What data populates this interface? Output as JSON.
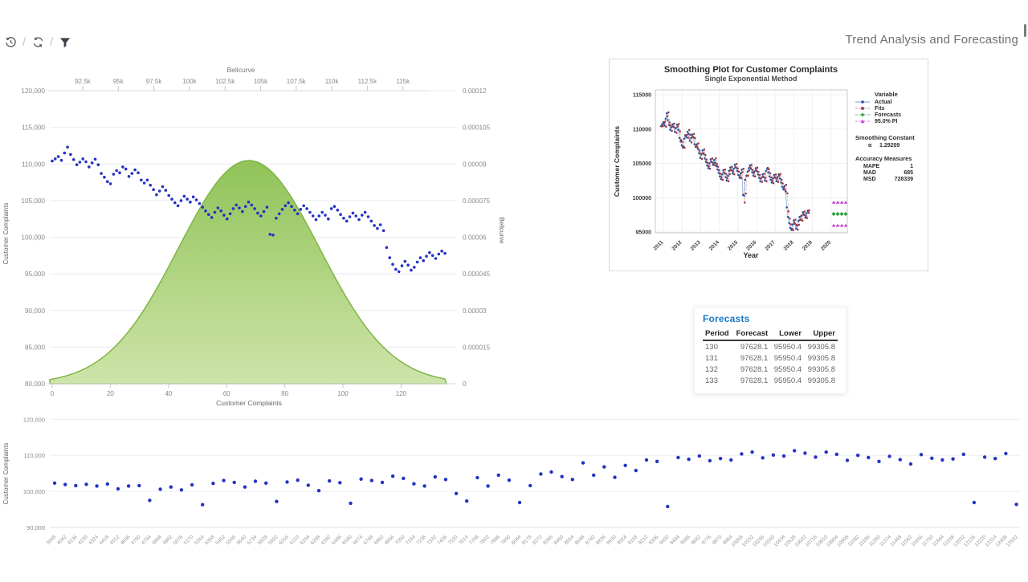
{
  "header": {
    "title": "Trend Analysis and Forecasting",
    "toolbar_icons": [
      "undo-icon",
      "refresh-icon",
      "filter-icon"
    ]
  },
  "forecasts_card": {
    "title": "Forecasts",
    "columns": [
      "Period",
      "Forecast",
      "Lower",
      "Upper"
    ],
    "rows": [
      [
        "130",
        "97628.1",
        "95950.4",
        "99305.8"
      ],
      [
        "131",
        "97628.1",
        "95950.4",
        "99305.8"
      ],
      [
        "132",
        "97628.1",
        "95950.4",
        "99305.8"
      ],
      [
        "133",
        "97628.1",
        "95950.4",
        "99305.8"
      ]
    ]
  },
  "chart_data": [
    {
      "type": "scatter",
      "name": "bellcurve-overlay-chart",
      "x_bottom": {
        "label": "Customer Complaints",
        "tick_values": [
          0,
          20,
          40,
          60,
          80,
          100,
          120
        ]
      },
      "x_top": {
        "label": "Bellcurve",
        "tick_values": [
          92500,
          95000,
          97500,
          100000,
          102500,
          105000,
          107500,
          110000,
          112500,
          115000
        ],
        "tick_labels": [
          "92.5k",
          "95k",
          "97.5k",
          "100k",
          "102.5k",
          "105k",
          "107.5k",
          "110k",
          "112.5k",
          "115k"
        ]
      },
      "y_left": {
        "label": "Customer Complaints",
        "tick_values": [
          120000,
          115000,
          110000,
          105000,
          100000,
          95000,
          90000,
          85000,
          80000
        ],
        "tick_labels": [
          "120,000",
          "115,000",
          "110,000",
          "105,000",
          "100,000",
          "95,000",
          "90,000",
          "85,000",
          "80,000"
        ]
      },
      "y_right": {
        "label": "Bellcurve",
        "tick_labels": [
          "0.00012",
          "0.000105",
          "0.00009",
          "0.000075",
          "0.00006",
          "0.000045",
          "0.00003",
          "0.000015",
          "0"
        ]
      },
      "bellcurve": {
        "mean": 104200,
        "sd": 4965,
        "peak": 9.14e-05,
        "fill_top": "#8cc152",
        "fill_bottom": "#cce3a6",
        "stroke": "#7ab33e"
      },
      "scatter": {
        "color": "#2433c2",
        "values": [
          110400,
          110700,
          111000,
          110500,
          111500,
          112300,
          111300,
          110600,
          109900,
          110250,
          110700,
          110300,
          109600,
          110150,
          110650,
          109900,
          108700,
          108200,
          107600,
          107300,
          108600,
          109100,
          108800,
          109600,
          109300,
          108300,
          108700,
          109200,
          108800,
          107800,
          107400,
          107800,
          107100,
          106500,
          105800,
          106300,
          106900,
          106400,
          105700,
          105200,
          104700,
          104300,
          105000,
          105600,
          105200,
          104800,
          105500,
          105100,
          104600,
          104100,
          103600,
          103100,
          102700,
          103400,
          104000,
          103600,
          103000,
          102500,
          103200,
          103900,
          104400,
          104000,
          103500,
          104200,
          104800,
          104400,
          103900,
          103300,
          102900,
          103500,
          104100,
          100400,
          100300,
          102600,
          103200,
          103800,
          104300,
          104700,
          104200,
          103700,
          103200,
          103800,
          104300,
          103900,
          103400,
          102900,
          102400,
          102900,
          103400,
          103000,
          102500,
          103900,
          104200,
          103700,
          103100,
          102600,
          102200,
          102800,
          103300,
          102900,
          102400,
          103000,
          103400,
          102800,
          102200,
          101600,
          101200,
          101700,
          100900,
          98600,
          97200,
          96300,
          95600,
          95300,
          96100,
          96700,
          96200,
          95500,
          95900,
          96600,
          97200,
          96800,
          97400,
          97900,
          97500,
          97100,
          97700,
          98100,
          97800
        ]
      }
    },
    {
      "type": "line",
      "name": "smoothing-plot",
      "title": "Smoothing Plot for Customer Complaints",
      "subtitle": "Single Exponential Method",
      "xlabel": "Year",
      "ylabel": "Customer Complaints",
      "x_ticks": [
        2011,
        2012,
        2013,
        2014,
        2015,
        2016,
        2017,
        2018,
        2019,
        2020
      ],
      "y_ticks": [
        95000,
        100000,
        105000,
        110000,
        115000
      ],
      "legend_title": "Variable",
      "series": [
        {
          "name": "Actual",
          "color": "#23509e",
          "line_color": "#7fa3cf",
          "marker": "circle",
          "dash": false
        },
        {
          "name": "Fits",
          "color": "#9e3039",
          "line_color": "#cf9598",
          "marker": "square",
          "dash": true
        },
        {
          "name": "Forecasts",
          "color": "#2f9e3f",
          "line_color": "#6fbf7d",
          "marker": "diamond",
          "dash": true
        },
        {
          "name": "95.0% PI",
          "color": "#c243cc",
          "line_color": "#d98fe0",
          "marker": "triangle",
          "dash": true
        }
      ],
      "smoothing_constant": {
        "title": "Smoothing Constant",
        "alpha_symbol": "α",
        "alpha_value": "1.29209"
      },
      "accuracy": {
        "title": "Accuracy Measures",
        "rows": [
          [
            "MAPE",
            "1"
          ],
          [
            "MAD",
            "685"
          ],
          [
            "MSD",
            "728339"
          ]
        ]
      },
      "forecast_value": 97628.1,
      "pi_lower": 95950.4,
      "pi_upper": 99305.8,
      "alpha": 1.29209
    },
    {
      "type": "scatter",
      "name": "complaints-by-driver-chart",
      "ylabel": "Customer Complaints",
      "y_tick_values": [
        120000,
        110000,
        100000,
        90000
      ],
      "y_tick_labels": [
        "120,000",
        "110,000",
        "100,000",
        "90,000"
      ],
      "color": "#2433c2",
      "x_categories": [
        3948,
        4042,
        4136,
        4230,
        4324,
        4418,
        4512,
        4606,
        4700,
        4794,
        4888,
        4982,
        5076,
        5170,
        5264,
        5358,
        5452,
        5546,
        5640,
        5734,
        5828,
        5922,
        6016,
        6110,
        6204,
        6298,
        6392,
        6486,
        6580,
        6674,
        6768,
        6862,
        6956,
        7050,
        7144,
        7238,
        7332,
        7426,
        7520,
        7614,
        7708,
        7802,
        7896,
        7990,
        8084,
        8178,
        8272,
        8366,
        8460,
        8554,
        8648,
        8742,
        8836,
        8930,
        9024,
        9118,
        9212,
        9306,
        9400,
        9494,
        9588,
        9682,
        9776,
        9870,
        9964,
        10058,
        10152,
        10246,
        10340,
        10434,
        10528,
        10622,
        10716,
        10810,
        10904,
        10998,
        11092,
        11186,
        11280,
        11374,
        11468,
        11562,
        11656,
        11750,
        11844,
        11938,
        12032,
        12126,
        12220,
        12314,
        12408,
        12502
      ],
      "values": [
        102300,
        101900,
        101600,
        101950,
        101500,
        102050,
        100700,
        101500,
        101600,
        97500,
        100600,
        101200,
        100400,
        101800,
        96300,
        102200,
        103000,
        102500,
        101200,
        102800,
        102300,
        97200,
        102600,
        103100,
        101700,
        100200,
        102900,
        102400,
        96700,
        103400,
        103000,
        102500,
        104200,
        103600,
        102100,
        101500,
        104000,
        103300,
        99400,
        97300,
        103800,
        101500,
        104500,
        103100,
        96900,
        101600,
        104800,
        105400,
        104100,
        103300,
        107900,
        104500,
        106800,
        103900,
        107200,
        105800,
        108700,
        108300,
        95800,
        109400,
        108900,
        109800,
        108500,
        109100,
        108700,
        110400,
        110900,
        109300,
        110100,
        109800,
        111300,
        110600,
        109500,
        110900,
        110300,
        108600,
        110000,
        109400,
        108300,
        109700,
        108800,
        107600,
        110200,
        109200,
        108700,
        109000,
        110300,
        96900,
        109500,
        109100,
        110500,
        96400
      ]
    }
  ]
}
